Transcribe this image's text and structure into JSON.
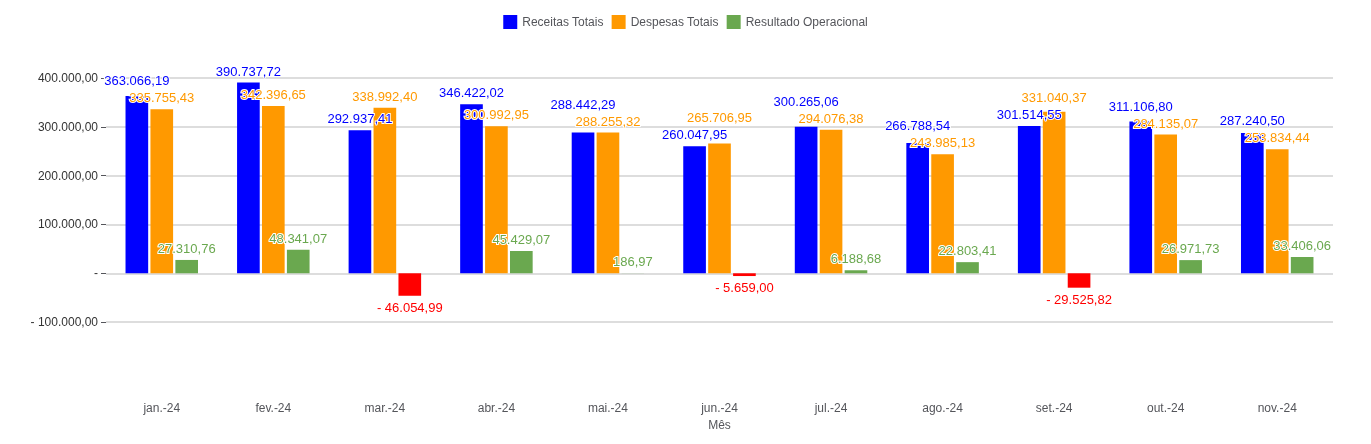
{
  "chart_data": {
    "type": "bar",
    "xlabel": "Mês",
    "categories": [
      "jan.-24",
      "fev.-24",
      "mar.-24",
      "abr.-24",
      "mai.-24",
      "jun.-24",
      "jul.-24",
      "ago.-24",
      "set.-24",
      "out.-24",
      "nov.-24"
    ],
    "series": [
      {
        "name": "Receitas Totais",
        "color": "#0000ff",
        "values": [
          363066.19,
          390737.72,
          292937.41,
          346422.02,
          288442.29,
          260047.95,
          300265.06,
          266788.54,
          301514.55,
          311106.8,
          287240.5
        ],
        "value_labels": [
          "363.066,19",
          "390.737,72",
          "292.937,41",
          "346.422,02",
          "288.442,29",
          "260.047,95",
          "300.265,06",
          "266.788,54",
          "301.514,55",
          "311.106,80",
          "287.240,50"
        ]
      },
      {
        "name": "Despesas Totais",
        "color": "#ff9900",
        "values": [
          335755.43,
          342396.65,
          338992.4,
          300992.95,
          288255.32,
          265706.95,
          294076.38,
          243985.13,
          331040.37,
          284135.07,
          253834.44
        ],
        "value_labels": [
          "335.755,43",
          "342.396,65",
          "338.992,40",
          "300.992,95",
          "288.255,32",
          "265.706,95",
          "294.076,38",
          "243.985,13",
          "331.040,37",
          "284.135,07",
          "253.834,44"
        ]
      },
      {
        "name": "Resultado Operacional",
        "color": "#6aa84f",
        "colors": [
          "#6aa84f",
          "#6aa84f",
          "#ff0000",
          "#6aa84f",
          "#6aa84f",
          "#ff0000",
          "#6aa84f",
          "#6aa84f",
          "#ff0000",
          "#6aa84f",
          "#6aa84f"
        ],
        "values": [
          27310.76,
          48341.07,
          -46054.99,
          45429.07,
          186.97,
          -5659.0,
          6188.68,
          22803.41,
          -29525.82,
          26971.73,
          33406.06
        ],
        "value_labels": [
          "27.310,76",
          "48.341,07",
          "- 46.054,99",
          "45.429,07",
          "186,97",
          "- 5.659,00",
          "6.188,68",
          "22.803,41",
          "- 29.525,82",
          "26.971,73",
          "33.406,06"
        ]
      }
    ],
    "ylim": [
      -100000,
      400000
    ],
    "yticks": [
      {
        "value": -100000,
        "label": "- 100.000,00"
      },
      {
        "value": 0,
        "label": "-"
      },
      {
        "value": 100000,
        "label": "100.000,00"
      },
      {
        "value": 200000,
        "label": "200.000,00"
      },
      {
        "value": 300000,
        "label": "300.000,00"
      },
      {
        "value": 400000,
        "label": "400.000,00"
      }
    ],
    "grid": "y",
    "legend": "top"
  }
}
